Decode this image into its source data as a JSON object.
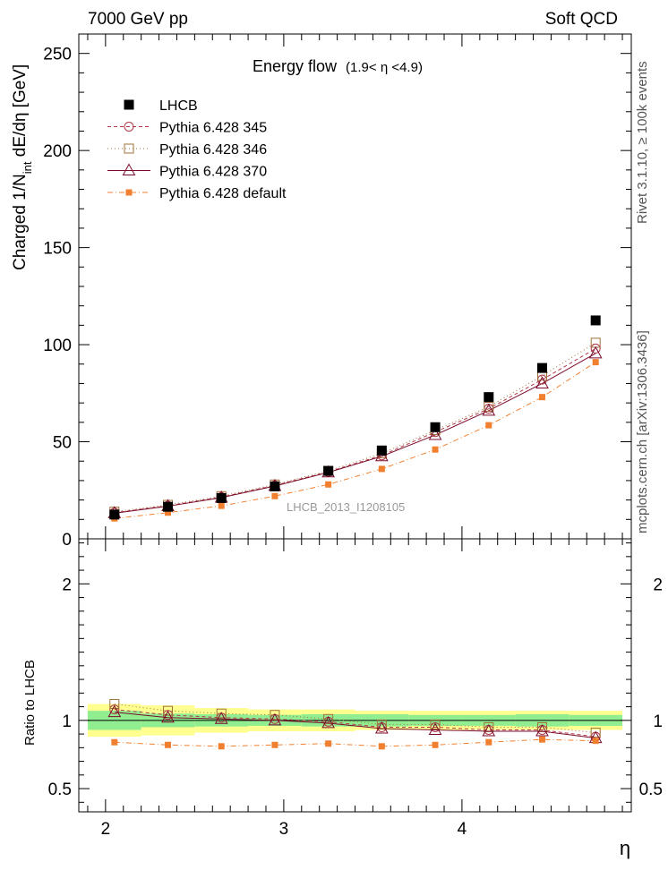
{
  "header": {
    "left": "7000 GeV pp",
    "right": "Soft QCD"
  },
  "side": {
    "top": "Rivet 3.1.10, ≥ 100k events",
    "bottom": "mcplots.cern.ch [arXiv:1306.3436]"
  },
  "watermark": "LHCB_2013_I1208105",
  "chart_data": [
    {
      "type": "scatter",
      "title": "Energy flow",
      "title_range": "(1.9< η <4.9)",
      "ylabel_main": "Charged 1/N",
      "ylabel_sub": "int",
      "ylabel_tail": " dE/dη [GeV]",
      "ylim": [
        0,
        260
      ],
      "yticks": [
        0,
        50,
        100,
        150,
        200,
        250
      ],
      "ytick_labels": [
        "0",
        "50",
        "100",
        "150",
        "200",
        "250"
      ],
      "x": [
        2.05,
        2.35,
        2.65,
        2.95,
        3.25,
        3.55,
        3.85,
        4.15,
        4.45,
        4.75
      ],
      "series": [
        {
          "name": "LHCB",
          "color": "#000000",
          "marker": "filled-square",
          "line": "none",
          "values": [
            12.5,
            16.5,
            21,
            27,
            35,
            45.5,
            57.5,
            73,
            88,
            112.5
          ]
        },
        {
          "name": "Pythia 6.428 345",
          "color": "#b03a48",
          "marker": "open-circle",
          "line": "dashed",
          "values": [
            13.5,
            17,
            21.5,
            27.5,
            34.5,
            43,
            55,
            67,
            82,
            98
          ]
        },
        {
          "name": "Pythia 6.428 346",
          "color": "#a0703a",
          "marker": "open-square",
          "line": "dotted",
          "values": [
            14,
            17.5,
            22,
            28,
            35,
            44,
            56,
            68,
            84,
            101
          ]
        },
        {
          "name": "Pythia 6.428 370",
          "color": "#7a0a2a",
          "marker": "open-triangle",
          "line": "solid",
          "values": [
            13.2,
            16.8,
            21.2,
            27.2,
            34.2,
            42.5,
            53.5,
            66,
            80,
            95.5
          ]
        },
        {
          "name": "Pythia 6.428 default",
          "color": "#f08030",
          "marker": "small-filled-square",
          "line": "dashdot",
          "values": [
            10.5,
            13.5,
            17,
            22,
            28,
            36,
            46,
            58.5,
            73,
            91
          ]
        }
      ]
    },
    {
      "type": "scatter",
      "ylabel": "Ratio to LHCB",
      "xlabel": "η",
      "xlim": [
        1.85,
        4.95
      ],
      "ylim": [
        0.33,
        2.33
      ],
      "yticks": [
        0.5,
        1,
        2
      ],
      "ytick_labels": [
        "0.5",
        "1",
        "2"
      ],
      "xticks": [
        2,
        3,
        4
      ],
      "xtick_labels": [
        "2",
        "3",
        "4"
      ],
      "x": [
        2.05,
        2.35,
        2.65,
        2.95,
        3.25,
        3.55,
        3.85,
        4.15,
        4.45,
        4.75
      ],
      "bands": {
        "stat_half": [
          0.07,
          0.05,
          0.045,
          0.04,
          0.045,
          0.045,
          0.04,
          0.04,
          0.045,
          0.04
        ],
        "total_half": [
          0.12,
          0.11,
          0.09,
          0.08,
          0.08,
          0.07,
          0.07,
          0.07,
          0.07,
          0.07
        ],
        "inner_color": "#90ee90",
        "outer_color": "#ffff90"
      },
      "series": [
        {
          "name": "Pythia 6.428 345",
          "values": [
            1.08,
            1.04,
            1.02,
            1.01,
            0.99,
            0.95,
            0.95,
            0.93,
            0.93,
            0.88
          ]
        },
        {
          "name": "Pythia 6.428 346",
          "values": [
            1.12,
            1.07,
            1.05,
            1.04,
            1.01,
            0.97,
            0.97,
            0.95,
            0.95,
            0.91
          ]
        },
        {
          "name": "Pythia 6.428 370",
          "values": [
            1.06,
            1.02,
            1.01,
            1.0,
            0.98,
            0.94,
            0.93,
            0.92,
            0.92,
            0.87
          ]
        },
        {
          "name": "Pythia 6.428 default",
          "values": [
            0.84,
            0.82,
            0.81,
            0.82,
            0.83,
            0.81,
            0.82,
            0.84,
            0.86,
            0.85
          ]
        }
      ]
    }
  ]
}
